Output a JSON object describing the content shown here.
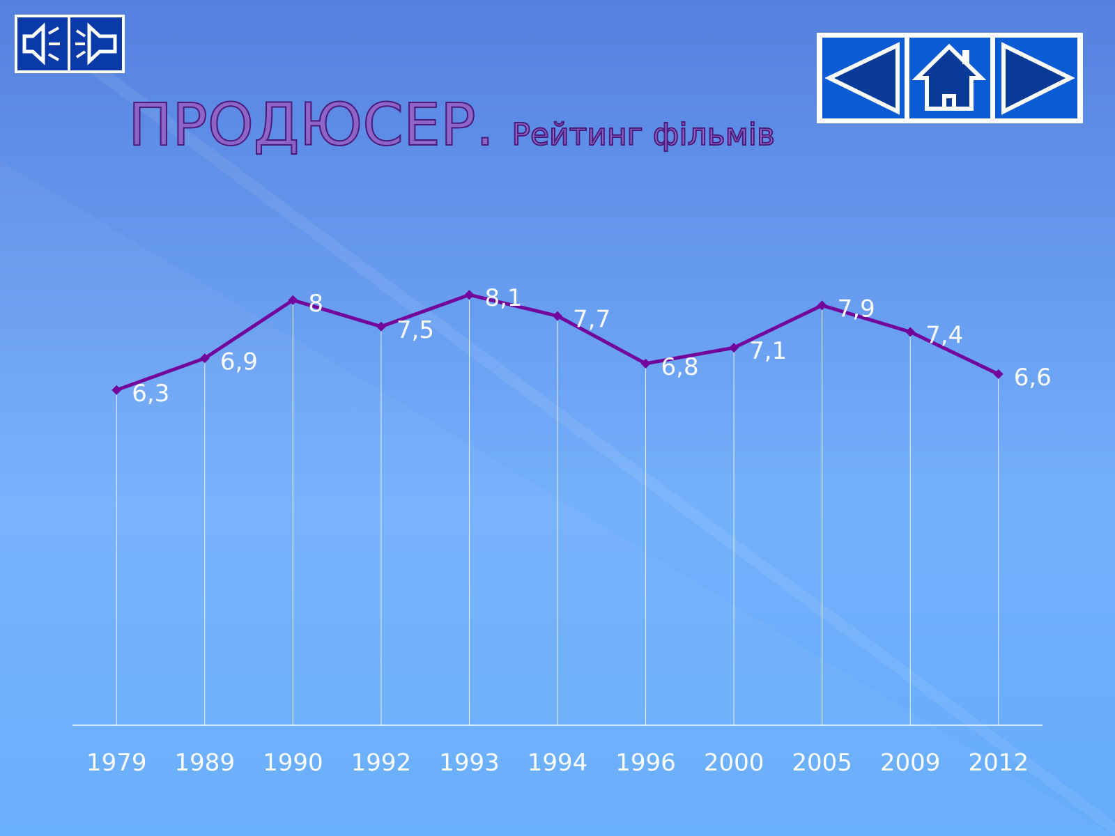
{
  "chart_data": {
    "type": "line",
    "title": "ПРОДЮСЕР.",
    "subtitle": "Рейтинг фільмів",
    "categories": [
      "1979",
      "1989",
      "1990",
      "1992",
      "1993",
      "1994",
      "1996",
      "2000",
      "2005",
      "2009",
      "2012"
    ],
    "values": [
      6.3,
      6.9,
      8,
      7.5,
      8.1,
      7.7,
      6.8,
      7.1,
      7.9,
      7.4,
      6.6
    ],
    "value_labels": [
      "6,3",
      "6,9",
      "8",
      "7,5",
      "8,1",
      "7,7",
      "6,8",
      "7,1",
      "7,9",
      "7,4",
      "6,6"
    ],
    "color": "#72059a",
    "ylim": [
      0,
      10
    ]
  }
}
